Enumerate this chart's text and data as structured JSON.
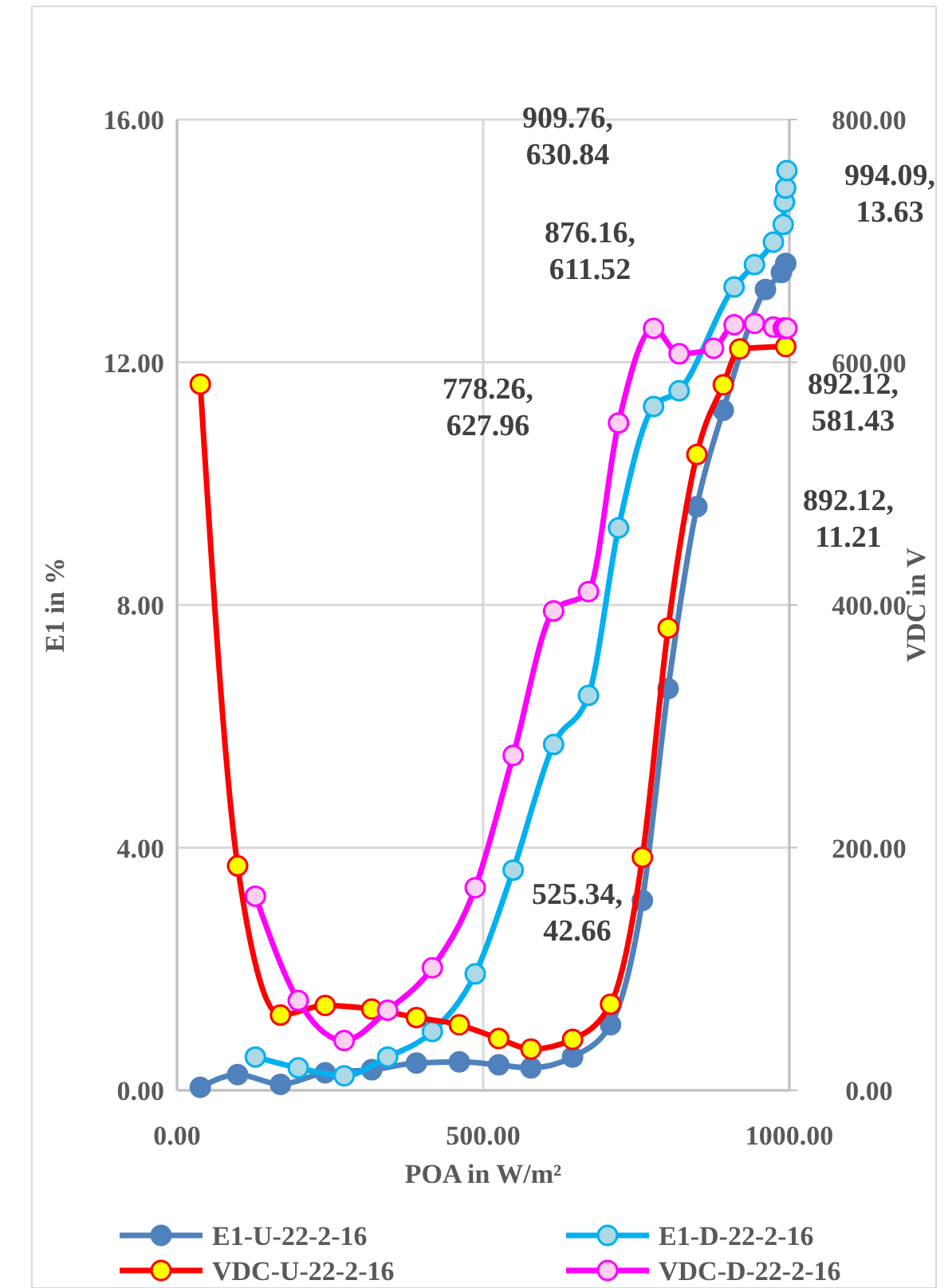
{
  "chart_data": {
    "type": "line",
    "xlabel": "POA in W/m²",
    "ylabel": "E1 in %",
    "y2label": "VDC in V",
    "xlim": [
      0,
      1000
    ],
    "xticks": [
      {
        "value": 0,
        "label": "0.00"
      },
      {
        "value": 500,
        "label": "500.00"
      },
      {
        "value": 1000,
        "label": "1000.00"
      }
    ],
    "ylim": [
      0,
      16
    ],
    "yticks": [
      {
        "value": 0,
        "label": "0.00"
      },
      {
        "value": 4,
        "label": "4.00"
      },
      {
        "value": 8,
        "label": "8.00"
      },
      {
        "value": 12,
        "label": "12.00"
      },
      {
        "value": 16,
        "label": "16.00"
      }
    ],
    "y2lim": [
      0,
      800
    ],
    "y2ticks": [
      {
        "value": 0,
        "label": "0.00"
      },
      {
        "value": 200,
        "label": "200.00"
      },
      {
        "value": 400,
        "label": "400.00"
      },
      {
        "value": 600,
        "label": "600.00"
      },
      {
        "value": 800,
        "label": "800.00"
      }
    ],
    "grid": true,
    "legend": "bottom",
    "marker": "circle",
    "line_style": "solid",
    "annotations": [
      "909.76, 630.84",
      "994.09, 13.63",
      "876.16, 611.52",
      "778.26, 627.96",
      "892.12, 581.43",
      "892.12, 11.21",
      "525.34, 42.66"
    ],
    "series": [
      {
        "name": "E1-U-22-2-16",
        "color": "#4f81bd",
        "x": [
          38,
          99,
          169,
          242,
          318,
          391,
          461,
          525.34,
          578,
          646,
          708,
          760,
          802,
          849,
          892.12,
          961,
          987,
          994.09
        ],
        "values": [
          0.05,
          0.26,
          0.1,
          0.29,
          0.34,
          0.45,
          0.47,
          0.42,
          0.37,
          0.55,
          1.08,
          3.13,
          6.62,
          9.62,
          11.21,
          13.2,
          13.48,
          13.63
        ]
      },
      {
        "name": "E1-D-22-2-16",
        "color": "#00b0f0",
        "x": [
          128,
          198,
          273,
          344,
          417,
          487,
          549,
          615,
          672,
          721,
          778.26,
          820,
          909.76,
          943,
          974,
          990,
          992,
          994,
          996
        ],
        "values": [
          0.55,
          0.37,
          0.24,
          0.55,
          0.97,
          1.92,
          3.63,
          5.7,
          6.51,
          9.27,
          11.27,
          11.53,
          13.24,
          13.61,
          13.98,
          14.27,
          14.64,
          14.87,
          15.16
        ]
      },
      {
        "name": "VDC-U-22-2-16",
        "color": "#ff0000",
        "axis": "y2",
        "x": [
          38,
          99,
          169,
          242,
          318,
          391,
          461,
          525.34,
          578,
          646,
          708,
          760,
          802,
          849,
          892.12,
          919,
          994.09
        ],
        "values": [
          582,
          185,
          62,
          70,
          67,
          60,
          54,
          42.66,
          34,
          42,
          71,
          192,
          381,
          524,
          581.43,
          611,
          613
        ]
      },
      {
        "name": "VDC-D-22-2-16",
        "color": "#ff00ff",
        "axis": "y2",
        "x": [
          128,
          198,
          273,
          344,
          417,
          487,
          549,
          615,
          672,
          721,
          778.26,
          820,
          876.16,
          909.76,
          943,
          974,
          990,
          992,
          994,
          996
        ],
        "values": [
          160,
          74,
          41,
          66,
          101,
          167,
          276,
          395,
          411,
          550,
          627.96,
          607,
          611.52,
          630.84,
          632,
          629,
          628,
          628,
          628,
          628
        ]
      }
    ]
  }
}
